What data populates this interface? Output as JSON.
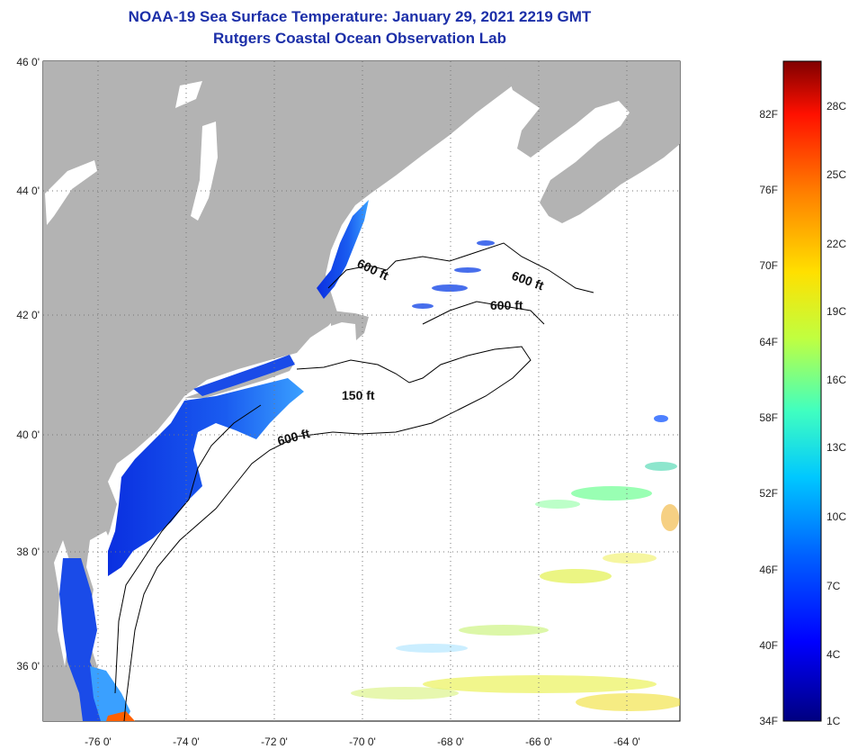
{
  "header": {
    "title": "NOAA-19 Sea Surface Temperature:  January 29, 2021 2219 GMT",
    "subtitle": "Rutgers Coastal Ocean Observation Lab"
  },
  "map": {
    "lat_labels": [
      "46 0'",
      "44 0'",
      "42 0'",
      "40 0'",
      "38 0'",
      "36 0'"
    ],
    "lon_labels": [
      "-76 0'",
      "-74 0'",
      "-72 0'",
      "-70 0'",
      "-68 0'",
      "-66 0'",
      "-64 0'"
    ],
    "contour_labels": [
      "600 ft",
      "600 ft",
      "600 ft",
      "150 ft",
      "600 ft"
    ],
    "land_color": "#b3b3b3",
    "water_color": "#ffffff"
  },
  "colorbar": {
    "fahrenheit_labels": [
      "34F",
      "40F",
      "46F",
      "52F",
      "58F",
      "64F",
      "70F",
      "76F",
      "82F"
    ],
    "celsius_labels": [
      "1C",
      "4C",
      "7C",
      "10C",
      "13C",
      "16C",
      "19C",
      "22C",
      "25C",
      "28C"
    ],
    "gradient_colors": [
      "#000080",
      "#0000ff",
      "#0060ff",
      "#00c8ff",
      "#40ffc0",
      "#c0ff40",
      "#ffe000",
      "#ff8000",
      "#ff1000",
      "#800000"
    ]
  }
}
